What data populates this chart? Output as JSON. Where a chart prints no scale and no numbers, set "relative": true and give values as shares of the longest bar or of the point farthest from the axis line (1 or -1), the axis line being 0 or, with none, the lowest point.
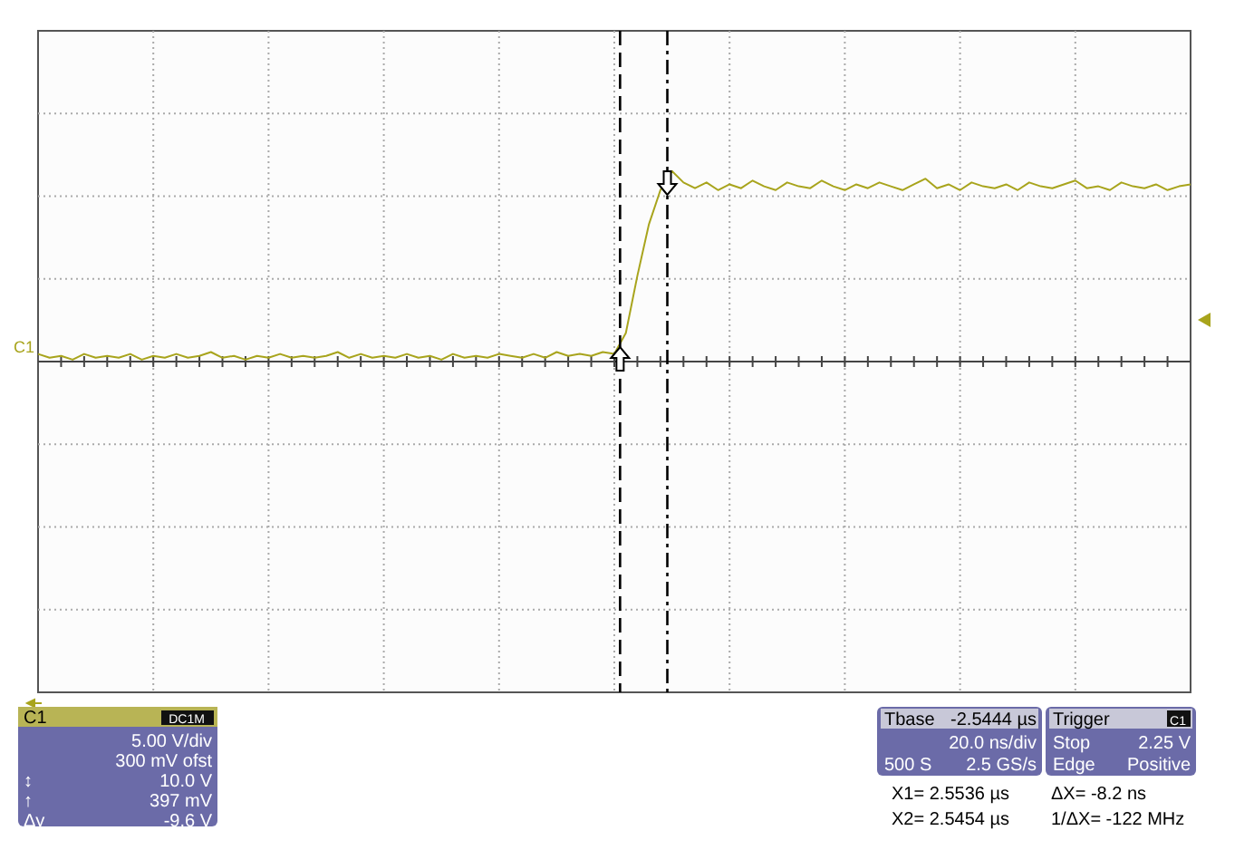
{
  "chart_data": {
    "type": "line",
    "relative": true,
    "grid": true,
    "marker": "none",
    "line_style": "solid",
    "categories": [
      null,
      null,
      null,
      null,
      null,
      null,
      null,
      null,
      null,
      null,
      null,
      null,
      null,
      null,
      null,
      null,
      null,
      null,
      null,
      null,
      null,
      null,
      null,
      null,
      null,
      null,
      null,
      null,
      null,
      null,
      null,
      null,
      null,
      null,
      null,
      null,
      null,
      null,
      null,
      null,
      null,
      null,
      null,
      null,
      null,
      null,
      null,
      null,
      null,
      null,
      null,
      null,
      null,
      null,
      null,
      null,
      null,
      null,
      null,
      null,
      null,
      null,
      null,
      null,
      null,
      null,
      null,
      null,
      null,
      null,
      null,
      null,
      null,
      null,
      null,
      null,
      null,
      null,
      null,
      null,
      null,
      null,
      null,
      null,
      null,
      null,
      null,
      null,
      null,
      null,
      null,
      null,
      null,
      null,
      null,
      null,
      null,
      null,
      null,
      null,
      null
    ],
    "series": [
      {
        "color": "#a8a41c",
        "values": [
          0.04,
          0.02,
          0.03,
          0.01,
          0.04,
          0.02,
          0.03,
          0.02,
          0.04,
          0.01,
          0.03,
          0.02,
          0.04,
          0.02,
          0.03,
          0.05,
          0.02,
          0.03,
          0.01,
          0.03,
          0.02,
          0.04,
          0.02,
          0.03,
          0.02,
          0.03,
          0.05,
          0.02,
          0.04,
          0.02,
          0.03,
          0.02,
          0.04,
          0.02,
          0.03,
          0.01,
          0.04,
          0.02,
          0.03,
          0.02,
          0.04,
          0.03,
          0.02,
          0.04,
          0.02,
          0.05,
          0.03,
          0.04,
          0.03,
          0.05,
          0.04,
          0.15,
          0.45,
          0.72,
          0.9,
          1.0,
          0.94,
          0.91,
          0.94,
          0.9,
          0.93,
          0.91,
          0.95,
          0.92,
          0.9,
          0.94,
          0.92,
          0.91,
          0.95,
          0.92,
          0.9,
          0.93,
          0.91,
          0.94,
          0.92,
          0.9,
          0.93,
          0.96,
          0.91,
          0.93,
          0.9,
          0.94,
          0.92,
          0.91,
          0.93,
          0.9,
          0.94,
          0.92,
          0.91,
          0.93,
          0.95,
          0.91,
          0.92,
          0.9,
          0.94,
          0.92,
          0.91,
          0.93,
          0.9,
          0.92,
          0.93
        ]
      }
    ],
    "annotations": [
      "C1",
      "DC1M",
      "5.00 V/div",
      "300 mV ofst",
      "↕",
      "10.0 V",
      "↑",
      "397 mV",
      "Δy",
      "-9.6 V",
      "Tbase",
      "-2.5444 µs",
      "20.0 ns/div",
      "500 S",
      "2.5 GS/s",
      "Trigger",
      "C1",
      "Stop",
      "2.25 V",
      "Edge",
      "Positive",
      "X1= 2.5536 µs",
      "ΔX= -8.2 ns",
      "X2= 2.5454 µs",
      "1/ΔX= -122 MHz"
    ]
  }
}
